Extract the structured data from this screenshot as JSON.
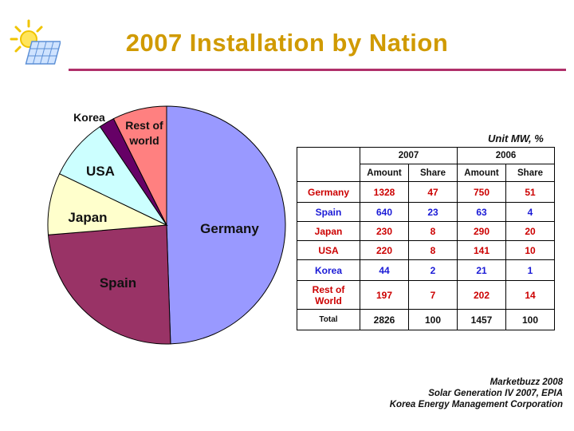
{
  "page": {
    "title": "2007 Installation by Nation"
  },
  "chart_data": [
    {
      "type": "pie",
      "title": "",
      "categories": [
        "Germany",
        "Spain",
        "Japan",
        "USA",
        "Korea",
        "Rest of world"
      ],
      "values": [
        47,
        23,
        8,
        8,
        2,
        7
      ],
      "colors": [
        "#9999ff",
        "#993366",
        "#ffffcc",
        "#ccffff",
        "#660066",
        "#ff8080"
      ],
      "legend": "none"
    },
    {
      "type": "table",
      "unit": "Unit MW, %",
      "groups": [
        "2007",
        "2006"
      ],
      "columns": [
        "Amount",
        "Share",
        "Amount",
        "Share"
      ],
      "rows": [
        {
          "label": "Germany",
          "label_color": "#cc0000",
          "value_color": "#cc0000",
          "values": [
            "1328",
            "47",
            "750",
            "51"
          ]
        },
        {
          "label": "Spain",
          "label_color": "#1a1ad6",
          "value_color": "#1a1ad6",
          "values": [
            "640",
            "23",
            "63",
            "4"
          ]
        },
        {
          "label": "Japan",
          "label_color": "#cc0000",
          "value_color": "#cc0000",
          "values": [
            "230",
            "8",
            "290",
            "20"
          ]
        },
        {
          "label": "USA",
          "label_color": "#cc0000",
          "value_color": "#cc0000",
          "values": [
            "220",
            "8",
            "141",
            "10"
          ]
        },
        {
          "label": "Korea",
          "label_color": "#1a1ad6",
          "value_color": "#1a1ad6",
          "values": [
            "44",
            "2",
            "21",
            "1"
          ]
        },
        {
          "label": "Rest of World",
          "label_color": "#cc0000",
          "value_color": "#cc0000",
          "values": [
            "197",
            "7",
            "202",
            "14"
          ]
        },
        {
          "label": "Total",
          "label_color": "#111111",
          "value_color": "#111111",
          "values": [
            "2826",
            "100",
            "1457",
            "100"
          ]
        }
      ]
    }
  ],
  "sources": [
    "Marketbuzz 2008",
    "Solar Generation IV 2007, EPIA",
    "Korea Energy Management Corporation"
  ]
}
